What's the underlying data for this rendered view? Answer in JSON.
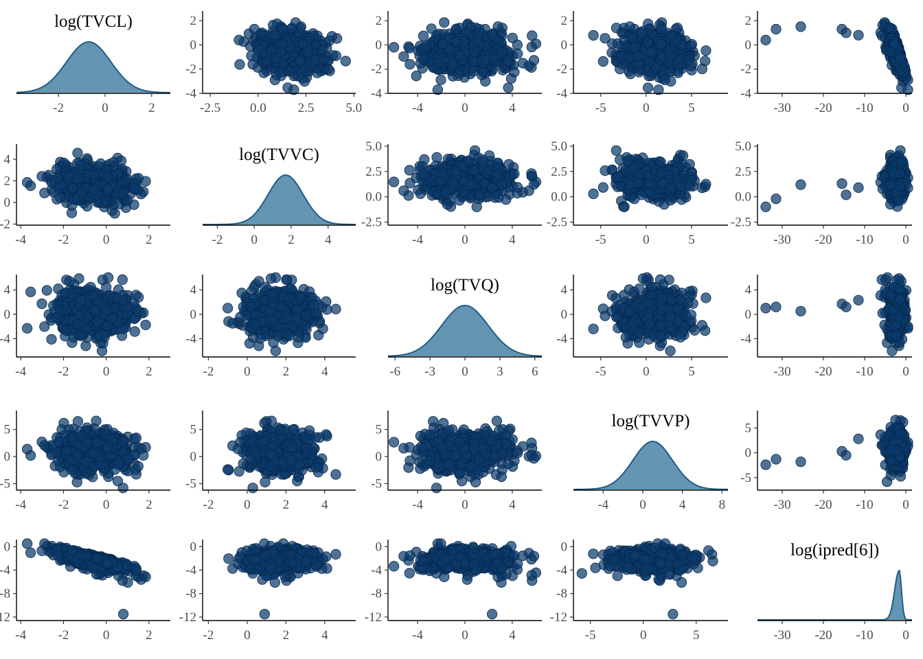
{
  "chart_data": {
    "type": "pairs",
    "variables": [
      "log(TVCL)",
      "log(TVVC)",
      "log(TVQ)",
      "log(TVVP)",
      "log(ipred[6])"
    ],
    "colors": {
      "point_fill": "#0b3a6b",
      "point_stroke": "#06264a",
      "density_fill": "#6496b4",
      "density_line": "#1f5c86"
    },
    "density": {
      "log(TVCL)": {
        "mean": -0.7,
        "sd": 0.95,
        "ylim": [
          0,
          1
        ]
      },
      "log(TVVC)": {
        "mean": 1.7,
        "sd": 0.95,
        "ylim": [
          0,
          1
        ]
      },
      "log(TVQ)": {
        "mean": 0.0,
        "sd": 2.0,
        "ylim": [
          0,
          1
        ]
      },
      "log(TVVP)": {
        "mean": 1.0,
        "sd": 2.0,
        "ylim": [
          0,
          1
        ]
      },
      "log(ipred[6])": {
        "mean": -1.6,
        "sd": 0.8,
        "ylim": [
          0,
          1
        ]
      }
    },
    "panels": [
      {
        "row": 0,
        "col": 0,
        "kind": "density",
        "variable": "log(TVCL)",
        "title": "log(TVCL)",
        "xlim": [
          -3.8,
          2.8
        ],
        "xticks": [
          -2,
          0,
          2
        ],
        "xtick_labels": [
          "-2",
          "0",
          "2"
        ]
      },
      {
        "row": 0,
        "col": 1,
        "kind": "scatter",
        "x": "log(TVVC)",
        "y": "log(TVCL)",
        "xlim": [
          -2.9,
          5.1
        ],
        "ylim": [
          -4,
          2.8
        ],
        "xticks": [
          -2.5,
          0.0,
          2.5,
          5.0
        ],
        "xtick_labels": [
          "-2.5",
          "0.0",
          "2.5",
          "5.0"
        ],
        "yticks": [
          -4,
          -2,
          0,
          2
        ],
        "ytick_labels": [
          "-4",
          "-2",
          "0",
          "2"
        ]
      },
      {
        "row": 0,
        "col": 2,
        "kind": "scatter",
        "x": "log(TVQ)",
        "y": "log(TVCL)",
        "xlim": [
          -6.5,
          6.5
        ],
        "ylim": [
          -4,
          2.8
        ],
        "xticks": [
          -4,
          0,
          4
        ],
        "xtick_labels": [
          "-4",
          "0",
          "4"
        ],
        "yticks": [
          -4,
          -2,
          0,
          2
        ],
        "ytick_labels": [
          "-4",
          "-2",
          "0",
          "2"
        ]
      },
      {
        "row": 0,
        "col": 3,
        "kind": "scatter",
        "x": "log(TVVP)",
        "y": "log(TVCL)",
        "xlim": [
          -8,
          9
        ],
        "ylim": [
          -4,
          2.8
        ],
        "xticks": [
          -5,
          0,
          5
        ],
        "xtick_labels": [
          "-5",
          "0",
          "5"
        ],
        "yticks": [
          -4,
          -2,
          0,
          2
        ],
        "ytick_labels": [
          "-4",
          "-2",
          "0",
          "2"
        ]
      },
      {
        "row": 0,
        "col": 4,
        "kind": "scatter",
        "x": "log(ipred[6])",
        "y": "log(TVCL)",
        "xlim": [
          -36,
          1.5
        ],
        "ylim": [
          -4,
          2.8
        ],
        "xticks": [
          -30,
          -20,
          -10,
          0
        ],
        "xtick_labels": [
          "-30",
          "-20",
          "-10",
          "0"
        ],
        "yticks": [
          -4,
          -2,
          0,
          2
        ],
        "ytick_labels": [
          "-4",
          "-2",
          "0",
          "2"
        ]
      },
      {
        "row": 1,
        "col": 0,
        "kind": "scatter",
        "x": "log(TVCL)",
        "y": "log(TVVC)",
        "xlim": [
          -4.2,
          3.0
        ],
        "ylim": [
          -2.1,
          5.4
        ],
        "xticks": [
          -4,
          -2,
          0,
          2
        ],
        "xtick_labels": [
          "-4",
          "-2",
          "0",
          "2"
        ],
        "yticks": [
          -2,
          0,
          2,
          4
        ],
        "ytick_labels": [
          "-2",
          "0",
          "2",
          "4"
        ]
      },
      {
        "row": 1,
        "col": 1,
        "kind": "density",
        "variable": "log(TVVC)",
        "title": "log(TVVC)",
        "xlim": [
          -2.8,
          5.5
        ],
        "xticks": [
          -2,
          0,
          2,
          4
        ],
        "xtick_labels": [
          "-2",
          "0",
          "2",
          "4"
        ]
      },
      {
        "row": 1,
        "col": 2,
        "kind": "scatter",
        "x": "log(TVQ)",
        "y": "log(TVVC)",
        "xlim": [
          -6.5,
          6.5
        ],
        "ylim": [
          -2.8,
          5.2
        ],
        "xticks": [
          -4,
          0,
          4
        ],
        "xtick_labels": [
          "-4",
          "0",
          "4"
        ],
        "yticks": [
          -2.5,
          0.0,
          2.5,
          5.0
        ],
        "ytick_labels": [
          "-2.5",
          "0.0",
          "2.5",
          "5.0"
        ]
      },
      {
        "row": 1,
        "col": 3,
        "kind": "scatter",
        "x": "log(TVVP)",
        "y": "log(TVVC)",
        "xlim": [
          -8,
          9
        ],
        "ylim": [
          -2.8,
          5.2
        ],
        "xticks": [
          -5,
          0,
          5
        ],
        "xtick_labels": [
          "-5",
          "0",
          "5"
        ],
        "yticks": [
          -2.5,
          0.0,
          2.5,
          5.0
        ],
        "ytick_labels": [
          "-2.5",
          "0.0",
          "2.5",
          "5.0"
        ]
      },
      {
        "row": 1,
        "col": 4,
        "kind": "scatter",
        "x": "log(ipred[6])",
        "y": "log(TVVC)",
        "xlim": [
          -36,
          1.5
        ],
        "ylim": [
          -2.8,
          5.2
        ],
        "xticks": [
          -30,
          -20,
          -10,
          0
        ],
        "xtick_labels": [
          "-30",
          "-20",
          "-10",
          "0"
        ],
        "yticks": [
          -2.5,
          0.0,
          2.5,
          5.0
        ],
        "ytick_labels": [
          "-2.5",
          "0.0",
          "2.5",
          "5.0"
        ]
      },
      {
        "row": 2,
        "col": 0,
        "kind": "scatter",
        "x": "log(TVCL)",
        "y": "log(TVQ)",
        "xlim": [
          -4.2,
          3.0
        ],
        "ylim": [
          -7.0,
          6.5
        ],
        "xticks": [
          -4,
          -2,
          0,
          2
        ],
        "xtick_labels": [
          "-4",
          "-2",
          "0",
          "2"
        ],
        "yticks": [
          -4,
          0,
          4
        ],
        "ytick_labels": [
          "-4",
          "0",
          "4"
        ]
      },
      {
        "row": 2,
        "col": 1,
        "kind": "scatter",
        "x": "log(TVVC)",
        "y": "log(TVQ)",
        "xlim": [
          -2.3,
          5.6
        ],
        "ylim": [
          -7.0,
          6.5
        ],
        "xticks": [
          -2,
          0,
          2,
          4
        ],
        "xtick_labels": [
          "-2",
          "0",
          "2",
          "4"
        ],
        "yticks": [
          -4,
          0,
          4
        ],
        "ytick_labels": [
          "-4",
          "0",
          "4"
        ]
      },
      {
        "row": 2,
        "col": 2,
        "kind": "density",
        "variable": "log(TVQ)",
        "title": "log(TVQ)",
        "xlim": [
          -6.6,
          6.6
        ],
        "xticks": [
          -6,
          -3,
          0,
          3,
          6
        ],
        "xtick_labels": [
          "-6",
          "-3",
          "0",
          "3",
          "6"
        ]
      },
      {
        "row": 2,
        "col": 3,
        "kind": "scatter",
        "x": "log(TVVP)",
        "y": "log(TVQ)",
        "xlim": [
          -8,
          9
        ],
        "ylim": [
          -7.0,
          6.5
        ],
        "xticks": [
          -5,
          0,
          5
        ],
        "xtick_labels": [
          "-5",
          "0",
          "5"
        ],
        "yticks": [
          -4,
          0,
          4
        ],
        "ytick_labels": [
          "-4",
          "0",
          "4"
        ]
      },
      {
        "row": 2,
        "col": 4,
        "kind": "scatter",
        "x": "log(ipred[6])",
        "y": "log(TVQ)",
        "xlim": [
          -36,
          1.5
        ],
        "ylim": [
          -7.0,
          6.5
        ],
        "xticks": [
          -30,
          -20,
          -10,
          0
        ],
        "xtick_labels": [
          "-30",
          "-20",
          "-10",
          "0"
        ],
        "yticks": [
          -4,
          0,
          4
        ],
        "ytick_labels": [
          "-4",
          "0",
          "4"
        ]
      },
      {
        "row": 3,
        "col": 0,
        "kind": "scatter",
        "x": "log(TVCL)",
        "y": "log(TVVP)",
        "xlim": [
          -4.2,
          3.0
        ],
        "ylim": [
          -6.2,
          8.5
        ],
        "xticks": [
          -4,
          -2,
          0,
          2
        ],
        "xtick_labels": [
          "-4",
          "-2",
          "0",
          "2"
        ],
        "yticks": [
          -5,
          0,
          5
        ],
        "ytick_labels": [
          "-5",
          "0",
          "5"
        ]
      },
      {
        "row": 3,
        "col": 1,
        "kind": "scatter",
        "x": "log(TVVC)",
        "y": "log(TVVP)",
        "xlim": [
          -2.3,
          5.6
        ],
        "ylim": [
          -6.2,
          8.5
        ],
        "xticks": [
          -2,
          0,
          2,
          4
        ],
        "xtick_labels": [
          "-2",
          "0",
          "2",
          "4"
        ],
        "yticks": [
          -5,
          0,
          5
        ],
        "ytick_labels": [
          "-5",
          "0",
          "5"
        ]
      },
      {
        "row": 3,
        "col": 2,
        "kind": "scatter",
        "x": "log(TVQ)",
        "y": "log(TVVP)",
        "xlim": [
          -6.5,
          6.5
        ],
        "ylim": [
          -6.2,
          8.5
        ],
        "xticks": [
          -4,
          0,
          4
        ],
        "xtick_labels": [
          "-4",
          "0",
          "4"
        ],
        "yticks": [
          -5,
          0,
          5
        ],
        "ytick_labels": [
          "-5",
          "0",
          "5"
        ]
      },
      {
        "row": 3,
        "col": 3,
        "kind": "density",
        "variable": "log(TVVP)",
        "title": "log(TVVP)",
        "xlim": [
          -7.0,
          8.6
        ],
        "xticks": [
          -4,
          0,
          4,
          8
        ],
        "xtick_labels": [
          "-4",
          "0",
          "4",
          "8"
        ]
      },
      {
        "row": 3,
        "col": 4,
        "kind": "scatter",
        "x": "log(ipred[6])",
        "y": "log(TVVP)",
        "xlim": [
          -36,
          1.5
        ],
        "ylim": [
          -7.5,
          8.5
        ],
        "xticks": [
          -30,
          -20,
          -10,
          0
        ],
        "xtick_labels": [
          "-30",
          "-20",
          "-10",
          "0"
        ],
        "yticks": [
          -5,
          0,
          5
        ],
        "ytick_labels": [
          "-5",
          "0",
          "5"
        ]
      },
      {
        "row": 4,
        "col": 0,
        "kind": "scatter",
        "x": "log(TVCL)",
        "y": "log(ipred[6])",
        "xlim": [
          -4.2,
          3.0
        ],
        "ylim": [
          -12.6,
          1.2
        ],
        "xticks": [
          -4,
          -2,
          0,
          2
        ],
        "xtick_labels": [
          "-4",
          "-2",
          "0",
          "2"
        ],
        "yticks": [
          -12,
          -8,
          -4,
          0
        ],
        "ytick_labels": [
          "-12",
          "-8",
          "-4",
          "0"
        ]
      },
      {
        "row": 4,
        "col": 1,
        "kind": "scatter",
        "x": "log(TVVC)",
        "y": "log(ipred[6])",
        "xlim": [
          -2.3,
          5.6
        ],
        "ylim": [
          -12.6,
          1.2
        ],
        "xticks": [
          -2,
          0,
          2,
          4
        ],
        "xtick_labels": [
          "-2",
          "0",
          "2",
          "4"
        ],
        "yticks": [
          -12,
          -8,
          -4,
          0
        ],
        "ytick_labels": [
          "-12",
          "-8",
          "-4",
          "0"
        ]
      },
      {
        "row": 4,
        "col": 2,
        "kind": "scatter",
        "x": "log(TVQ)",
        "y": "log(ipred[6])",
        "xlim": [
          -6.5,
          6.5
        ],
        "ylim": [
          -12.6,
          1.2
        ],
        "xticks": [
          -4,
          0,
          4
        ],
        "xtick_labels": [
          "-4",
          "0",
          "4"
        ],
        "yticks": [
          -12,
          -8,
          -4,
          0
        ],
        "ytick_labels": [
          "-12",
          "-8",
          "-4",
          "0"
        ]
      },
      {
        "row": 4,
        "col": 3,
        "kind": "scatter",
        "x": "log(TVVP)",
        "y": "log(ipred[6])",
        "xlim": [
          -6.6,
          8.0
        ],
        "ylim": [
          -12.6,
          1.2
        ],
        "xticks": [
          -5,
          0,
          5
        ],
        "xtick_labels": [
          "-5",
          "0",
          "5"
        ],
        "yticks": [
          -12,
          -8,
          -4,
          0
        ],
        "ytick_labels": [
          "-12",
          "-8",
          "-4",
          "0"
        ]
      },
      {
        "row": 4,
        "col": 4,
        "kind": "density",
        "variable": "log(ipred[6])",
        "title": "log(ipred[6])",
        "xlim": [
          -36,
          1.5
        ],
        "xticks": [
          -30,
          -20,
          -10,
          0
        ],
        "xtick_labels": [
          "-30",
          "-20",
          "-10",
          "0"
        ]
      }
    ],
    "outliers": {
      "log(ipred[6])": [
        -34,
        -31.5,
        -25.5,
        -15.5,
        -14.5,
        -11.5
      ],
      "log(TVCL)": [
        0.4,
        1.3,
        1.5,
        1.3,
        1.0,
        0.8
      ],
      "log(TVVC)": [
        -1.0,
        -0.2,
        1.2,
        1.3,
        0.2,
        0.9
      ],
      "log(TVQ)": [
        1.0,
        1.2,
        0.5,
        1.7,
        1.2,
        2.3
      ],
      "log(TVVP)": [
        -2.4,
        -1.3,
        -1.8,
        0.3,
        -0.5,
        2.8
      ]
    }
  }
}
